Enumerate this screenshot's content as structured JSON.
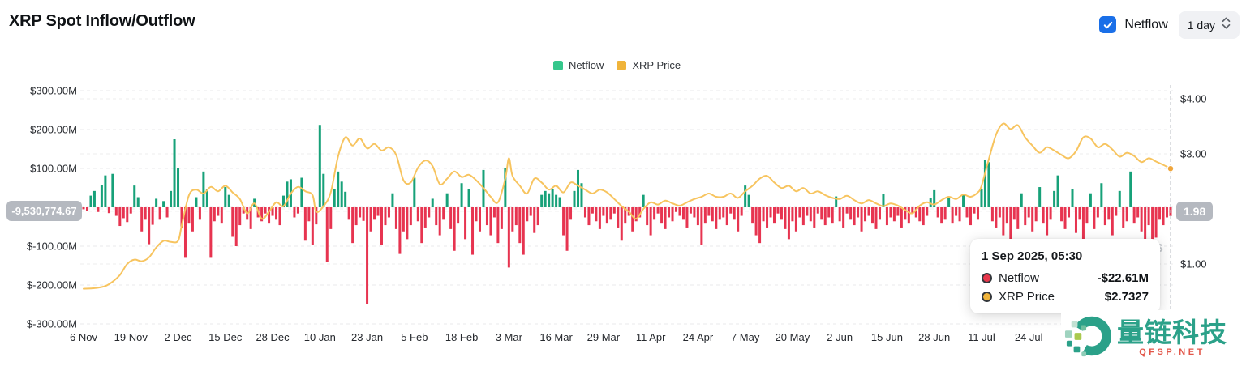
{
  "header": {
    "title": "XRP Spot Inflow/Outflow",
    "netflow_toggle_label": "Netflow",
    "interval_selected": "1 day"
  },
  "legend": {
    "items": [
      {
        "label": "Netflow",
        "color": "#35c78c"
      },
      {
        "label": "XRP Price",
        "color": "#f0b43a"
      }
    ]
  },
  "axes": {
    "left_ticks": [
      {
        "label": "$300.00M",
        "value": 300
      },
      {
        "label": "$200.00M",
        "value": 200
      },
      {
        "label": "$100.00M",
        "value": 100
      },
      {
        "label": "$-100.00M",
        "value": -100
      },
      {
        "label": "$-200.00M",
        "value": -200
      },
      {
        "label": "$-300.00M",
        "value": -300
      }
    ],
    "right_ticks": [
      {
        "label": "$4.00",
        "value": 4
      },
      {
        "label": "$3.00",
        "value": 3
      },
      {
        "label": "$1.00",
        "value": 1
      }
    ],
    "x_ticks": {
      "interval_days": 13,
      "labels": [
        "6 Nov",
        "19 Nov",
        "2 Dec",
        "15 Dec",
        "28 Dec",
        "10 Jan",
        "23 Jan",
        "5 Feb",
        "18 Feb",
        "3 Mar",
        "16 Mar",
        "29 Mar",
        "11 Apr",
        "24 Apr",
        "7 May",
        "20 May",
        "2 Jun",
        "15 Jun",
        "28 Jun",
        "11 Jul",
        "24 Jul",
        "6 Aug"
      ]
    }
  },
  "badges": {
    "current_netflow": "-9,530,774.67",
    "current_price_axis": "1.98"
  },
  "tooltip": {
    "date": "1 Sep 2025, 05:30",
    "rows": [
      {
        "label": "Netflow",
        "value": "-$22.61M",
        "dot_color": "#e8374b"
      },
      {
        "label": "XRP Price",
        "value": "$2.7327",
        "dot_color": "#f0b43a"
      }
    ]
  },
  "watermark": {
    "brand": "量链科技",
    "domain": "QFSP.NET",
    "background_fragment": "ss"
  },
  "chart_data": {
    "type": "bar+line combo",
    "x_start_label": "6 Nov",
    "total_days": 300,
    "left_axis_range_musd": [
      -300,
      300
    ],
    "left_grid_values_musd": [
      300,
      200,
      100,
      0,
      -100,
      -200,
      -300
    ],
    "right_grid_values_usd": [
      4,
      3,
      2,
      1
    ],
    "grid": true,
    "legend_position": "top-center",
    "current_netflow_value_musd": -9.53,
    "crosshair_day": 299,
    "series": [
      {
        "name": "Netflow",
        "type": "bar",
        "unit": "$M",
        "color_positive": "#17a179",
        "color_negative": "#e73450",
        "daily_values": [
          -5,
          -10,
          30,
          42,
          -12,
          58,
          82,
          -15,
          86,
          -22,
          -48,
          -28,
          -38,
          -16,
          56,
          26,
          -62,
          -32,
          -95,
          -45,
          22,
          -32,
          16,
          -26,
          42,
          175,
          100,
          -52,
          -130,
          -42,
          -62,
          26,
          -32,
          92,
          46,
          -130,
          -36,
          -22,
          -42,
          52,
          32,
          -76,
          -100,
          -46,
          -16,
          -32,
          -56,
          22,
          -26,
          -36,
          -16,
          -42,
          -22,
          -32,
          -46,
          30,
          66,
          72,
          -26,
          -16,
          76,
          -86,
          -36,
          -96,
          -44,
          212,
          86,
          -140,
          -56,
          46,
          92,
          66,
          40,
          -32,
          -92,
          -46,
          -26,
          -35,
          -250,
          -62,
          -32,
          -22,
          -96,
          -46,
          -26,
          36,
          -56,
          -120,
          -62,
          -82,
          -46,
          76,
          -36,
          -92,
          -52,
          -26,
          22,
          -46,
          -72,
          -32,
          36,
          -56,
          -112,
          -42,
          62,
          -82,
          46,
          -122,
          -36,
          -62,
          96,
          -46,
          -72,
          -26,
          -92,
          -56,
          102,
          -155,
          -62,
          -46,
          -92,
          -122,
          -36,
          -22,
          -66,
          -46,
          32,
          42,
          36,
          46,
          32,
          26,
          -72,
          -112,
          -32,
          42,
          96,
          62,
          -26,
          -46,
          -16,
          -36,
          -56,
          -22,
          -42,
          -32,
          -16,
          -52,
          -86,
          -42,
          -22,
          -62,
          -36,
          -26,
          32,
          -46,
          -72,
          -32,
          -16,
          -42,
          -56,
          -26,
          -36,
          -12,
          -22,
          -32,
          -52,
          -16,
          -26,
          -46,
          -96,
          -42,
          -22,
          -36,
          -56,
          -32,
          -26,
          -46,
          -16,
          -32,
          -62,
          -22,
          56,
          32,
          -42,
          -72,
          -92,
          -36,
          -52,
          -26,
          -42,
          -16,
          -32,
          -56,
          -82,
          -36,
          -62,
          -26,
          -46,
          -22,
          -36,
          -52,
          -16,
          -32,
          -46,
          -26,
          -42,
          28,
          -36,
          -52,
          -16,
          -32,
          -46,
          -26,
          -62,
          -36,
          -22,
          -42,
          -56,
          -32,
          34,
          -46,
          -26,
          -36,
          -22,
          -52,
          -32,
          -42,
          -16,
          -26,
          -36,
          -46,
          -22,
          24,
          44,
          -26,
          -42,
          -32,
          26,
          -42,
          -22,
          -36,
          32,
          -26,
          -46,
          -16,
          -32,
          46,
          122,
          116,
          -36,
          -52,
          -26,
          -72,
          -42,
          -92,
          -32,
          -56,
          36,
          -46,
          -26,
          -62,
          -36,
          52,
          -42,
          -72,
          -32,
          42,
          82,
          -36,
          -56,
          -26,
          46,
          -66,
          -32,
          -92,
          -42,
          36,
          -56,
          -26,
          62,
          -46,
          -32,
          -72,
          -22,
          42,
          -52,
          -36,
          92,
          -42,
          -26,
          -62,
          -250,
          -46,
          -152,
          -78,
          -32,
          -46,
          -26,
          -22.61
        ]
      },
      {
        "name": "XRP Price",
        "type": "line",
        "unit": "USD",
        "color": "#f7c45f",
        "end_dot_color": "#f0a63c",
        "last_value": 2.7327,
        "anchors_day_price": [
          [
            0,
            0.55
          ],
          [
            3,
            0.56
          ],
          [
            6,
            0.6
          ],
          [
            8,
            0.68
          ],
          [
            10,
            0.8
          ],
          [
            12,
            1.0
          ],
          [
            14,
            1.08
          ],
          [
            16,
            1.05
          ],
          [
            18,
            1.12
          ],
          [
            20,
            1.3
          ],
          [
            22,
            1.42
          ],
          [
            24,
            1.4
          ],
          [
            26,
            1.42
          ],
          [
            27,
            1.7
          ],
          [
            29,
            2.25
          ],
          [
            31,
            2.35
          ],
          [
            33,
            2.28
          ],
          [
            35,
            2.4
          ],
          [
            37,
            2.32
          ],
          [
            39,
            2.42
          ],
          [
            41,
            2.3
          ],
          [
            43,
            2.18
          ],
          [
            45,
            1.92
          ],
          [
            47,
            2.1
          ],
          [
            49,
            1.82
          ],
          [
            51,
            1.95
          ],
          [
            53,
            2.12
          ],
          [
            55,
            2.05
          ],
          [
            57,
            2.28
          ],
          [
            59,
            2.4
          ],
          [
            61,
            2.32
          ],
          [
            63,
            2.25
          ],
          [
            64,
            1.95
          ],
          [
            66,
            2.05
          ],
          [
            68,
            2.3
          ],
          [
            70,
            2.95
          ],
          [
            72,
            3.3
          ],
          [
            74,
            3.15
          ],
          [
            76,
            3.28
          ],
          [
            78,
            3.1
          ],
          [
            80,
            3.18
          ],
          [
            82,
            3.06
          ],
          [
            84,
            3.12
          ],
          [
            86,
            2.98
          ],
          [
            88,
            2.52
          ],
          [
            90,
            2.48
          ],
          [
            92,
            2.75
          ],
          [
            94,
            2.88
          ],
          [
            96,
            2.78
          ],
          [
            98,
            2.45
          ],
          [
            100,
            2.55
          ],
          [
            102,
            2.68
          ],
          [
            104,
            2.58
          ],
          [
            106,
            2.62
          ],
          [
            108,
            2.52
          ],
          [
            110,
            2.38
          ],
          [
            112,
            2.22
          ],
          [
            114,
            2.12
          ],
          [
            116,
            2.55
          ],
          [
            117,
            2.92
          ],
          [
            118,
            2.6
          ],
          [
            120,
            2.42
          ],
          [
            122,
            2.28
          ],
          [
            124,
            2.55
          ],
          [
            126,
            2.48
          ],
          [
            128,
            2.35
          ],
          [
            130,
            2.42
          ],
          [
            132,
            2.3
          ],
          [
            134,
            2.48
          ],
          [
            136,
            2.42
          ],
          [
            138,
            2.35
          ],
          [
            140,
            2.28
          ],
          [
            142,
            2.35
          ],
          [
            144,
            2.3
          ],
          [
            146,
            2.18
          ],
          [
            148,
            2.05
          ],
          [
            150,
            1.95
          ],
          [
            152,
            1.82
          ],
          [
            154,
            2.0
          ],
          [
            156,
            2.12
          ],
          [
            158,
            2.08
          ],
          [
            160,
            2.15
          ],
          [
            162,
            2.1
          ],
          [
            164,
            2.06
          ],
          [
            166,
            2.12
          ],
          [
            168,
            2.18
          ],
          [
            170,
            2.22
          ],
          [
            172,
            2.28
          ],
          [
            174,
            2.22
          ],
          [
            176,
            2.22
          ],
          [
            178,
            2.28
          ],
          [
            180,
            2.2
          ],
          [
            182,
            2.32
          ],
          [
            184,
            2.42
          ],
          [
            186,
            2.55
          ],
          [
            188,
            2.6
          ],
          [
            190,
            2.48
          ],
          [
            192,
            2.38
          ],
          [
            194,
            2.42
          ],
          [
            196,
            2.32
          ],
          [
            198,
            2.38
          ],
          [
            200,
            2.28
          ],
          [
            202,
            2.32
          ],
          [
            204,
            2.25
          ],
          [
            206,
            2.2
          ],
          [
            208,
            2.18
          ],
          [
            210,
            2.24
          ],
          [
            212,
            2.16
          ],
          [
            214,
            2.1
          ],
          [
            216,
            2.16
          ],
          [
            218,
            2.1
          ],
          [
            220,
            2.05
          ],
          [
            222,
            2.1
          ],
          [
            224,
            2.06
          ],
          [
            226,
            1.98
          ],
          [
            228,
            1.92
          ],
          [
            230,
            2.06
          ],
          [
            232,
            2.12
          ],
          [
            234,
            2.08
          ],
          [
            236,
            2.16
          ],
          [
            238,
            2.22
          ],
          [
            240,
            2.18
          ],
          [
            242,
            2.26
          ],
          [
            244,
            2.22
          ],
          [
            246,
            2.3
          ],
          [
            247,
            2.42
          ],
          [
            249,
            2.9
          ],
          [
            251,
            3.35
          ],
          [
            253,
            3.55
          ],
          [
            255,
            3.45
          ],
          [
            257,
            3.52
          ],
          [
            259,
            3.3
          ],
          [
            261,
            3.15
          ],
          [
            263,
            3.02
          ],
          [
            265,
            3.12
          ],
          [
            267,
            3.06
          ],
          [
            269,
            2.98
          ],
          [
            271,
            2.92
          ],
          [
            273,
            3.05
          ],
          [
            275,
            3.3
          ],
          [
            277,
            3.28
          ],
          [
            279,
            3.12
          ],
          [
            281,
            3.18
          ],
          [
            283,
            3.08
          ],
          [
            285,
            2.95
          ],
          [
            287,
            3.02
          ],
          [
            289,
            2.96
          ],
          [
            291,
            2.85
          ],
          [
            293,
            2.92
          ],
          [
            295,
            2.86
          ],
          [
            297,
            2.8
          ],
          [
            299,
            2.7327
          ]
        ]
      }
    ]
  }
}
